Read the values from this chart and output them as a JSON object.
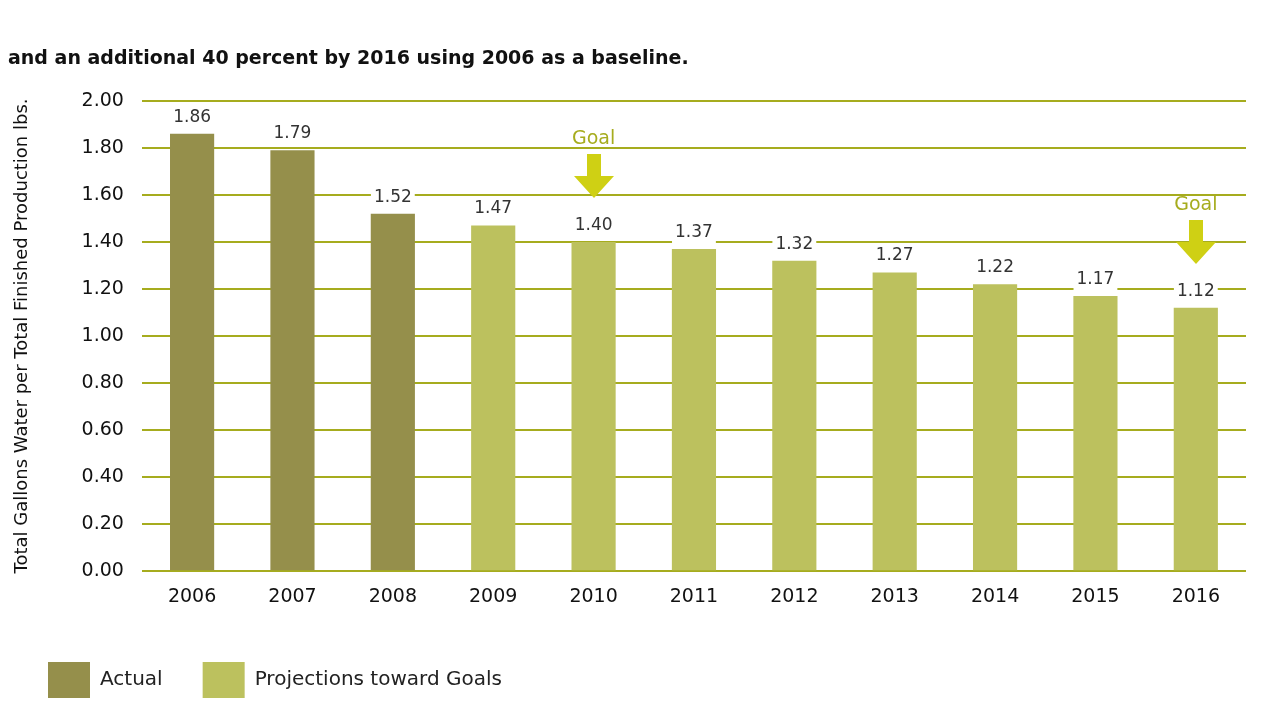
{
  "chart_data": {
    "type": "bar",
    "title": "and an additional 40 percent by 2016 using 2006 as a baseline.",
    "ylabel": "Total Gallons Water per Total Finished Production lbs.",
    "categories": [
      "2006",
      "2007",
      "2008",
      "2009",
      "2010",
      "2011",
      "2012",
      "2013",
      "2014",
      "2015",
      "2016"
    ],
    "series": [
      {
        "name": "Actual",
        "color": "#958f4b",
        "values": [
          1.86,
          1.79,
          1.52,
          null,
          null,
          null,
          null,
          null,
          null,
          null,
          null
        ],
        "value_labels": [
          "1.86",
          "1.79",
          "1.52",
          null,
          null,
          null,
          null,
          null,
          null,
          null,
          null
        ]
      },
      {
        "name": "Projections toward Goals",
        "color": "#bcc15e",
        "values": [
          null,
          null,
          null,
          1.47,
          1.4,
          1.37,
          1.32,
          1.27,
          1.22,
          1.17,
          1.12
        ],
        "value_labels": [
          null,
          null,
          null,
          "1.47",
          "1.40",
          "1.37",
          "1.32",
          "1.27",
          "1.22",
          "1.17",
          "1.12"
        ]
      }
    ],
    "ylim": [
      0,
      2
    ],
    "yticks": [
      {
        "value": 0,
        "label": "0.00"
      },
      {
        "value": 0.2,
        "label": "0.20"
      },
      {
        "value": 0.4,
        "label": "0.40"
      },
      {
        "value": 0.6,
        "label": "0.60"
      },
      {
        "value": 0.8,
        "label": "0.80"
      },
      {
        "value": 1,
        "label": "1.00"
      },
      {
        "value": 1.2,
        "label": "1.20"
      },
      {
        "value": 1.4,
        "label": "1.40"
      },
      {
        "value": 1.6,
        "label": "1.60"
      },
      {
        "value": 1.8,
        "label": "1.80"
      },
      {
        "value": 2,
        "label": "2.00"
      }
    ],
    "grid": "y",
    "legend": "bottom left",
    "annotations": [
      "Goal",
      "Goal"
    ]
  }
}
